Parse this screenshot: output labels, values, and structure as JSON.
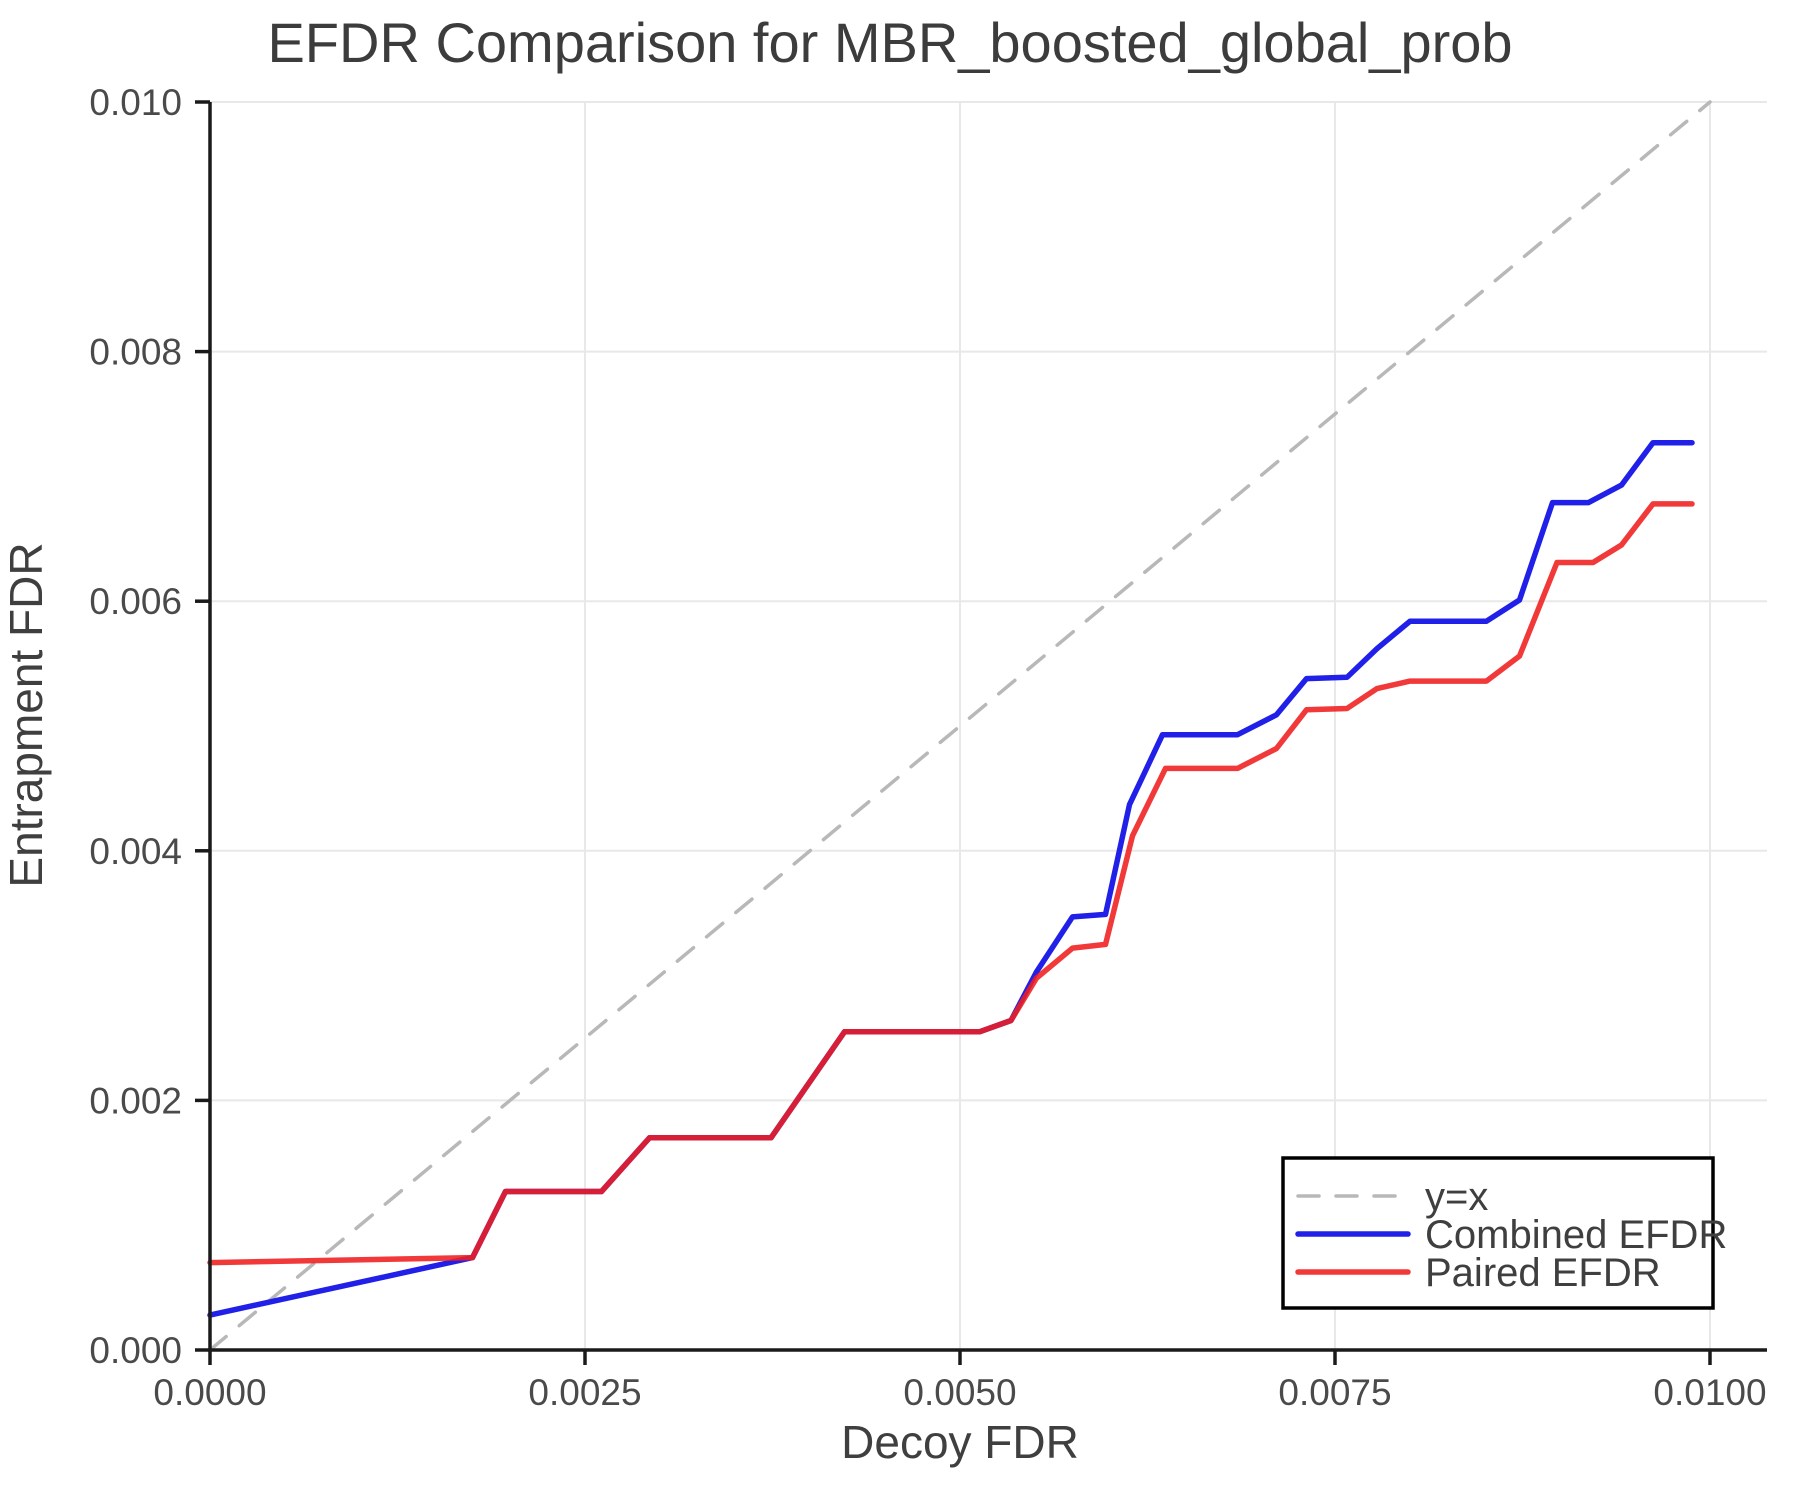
{
  "chart_data": {
    "type": "line",
    "title": "EFDR Comparison for MBR_boosted_global_prob",
    "xlabel": "Decoy FDR",
    "ylabel": "Entrapment FDR",
    "xlim": [
      0.0,
      0.01
    ],
    "ylim": [
      0.0,
      0.01
    ],
    "grid": true,
    "legend_position": "lower right",
    "background": "#ffffff",
    "grid_color": "#e8e8e8",
    "spine_color": "#1a1a1a",
    "text_color": "#3f3f3f",
    "xticks": {
      "values": [
        0.0,
        0.0025,
        0.005,
        0.0075,
        0.01
      ],
      "labels": [
        "0.0000",
        "0.0025",
        "0.0050",
        "0.0075",
        "0.0100"
      ]
    },
    "yticks": {
      "values": [
        0.0,
        0.002,
        0.004,
        0.006,
        0.008,
        0.01
      ],
      "labels": [
        "0.000",
        "0.002",
        "0.004",
        "0.006",
        "0.008",
        "0.010"
      ]
    },
    "series": [
      {
        "name": "y=x",
        "color": "#b8b8b8",
        "style": "dashed",
        "width": 3.5,
        "opacity": 1,
        "points": [
          [
            0.0,
            0.0
          ],
          [
            0.01,
            0.01
          ]
        ]
      },
      {
        "name": "Combined EFDR",
        "color": "#2020e8",
        "style": "solid",
        "width": 5.5,
        "opacity": 1,
        "points": [
          [
            0.0,
            0.00028
          ],
          [
            0.00175,
            0.00074
          ],
          [
            0.00197,
            0.00127
          ],
          [
            0.00261,
            0.00127
          ],
          [
            0.00293,
            0.0017
          ],
          [
            0.00374,
            0.0017
          ],
          [
            0.00423,
            0.00255
          ],
          [
            0.00513,
            0.00255
          ],
          [
            0.00534,
            0.00264
          ],
          [
            0.00551,
            0.00303
          ],
          [
            0.00575,
            0.00347
          ],
          [
            0.00597,
            0.00349
          ],
          [
            0.00613,
            0.00437
          ],
          [
            0.00635,
            0.00493
          ],
          [
            0.00685,
            0.00493
          ],
          [
            0.00711,
            0.00509
          ],
          [
            0.00731,
            0.00538
          ],
          [
            0.00758,
            0.00539
          ],
          [
            0.00778,
            0.00562
          ],
          [
            0.008,
            0.00584
          ],
          [
            0.00851,
            0.00584
          ],
          [
            0.00873,
            0.00601
          ],
          [
            0.00895,
            0.00679
          ],
          [
            0.00919,
            0.00679
          ],
          [
            0.00941,
            0.00693
          ],
          [
            0.00962,
            0.00727
          ],
          [
            0.00988,
            0.00727
          ]
        ]
      },
      {
        "name": "Paired EFDR",
        "color": "#f01e1e",
        "style": "solid",
        "width": 5.5,
        "opacity": 0.88,
        "points": [
          [
            0.0,
            0.0007
          ],
          [
            0.00175,
            0.00074
          ],
          [
            0.00197,
            0.00127
          ],
          [
            0.00261,
            0.00127
          ],
          [
            0.00293,
            0.0017
          ],
          [
            0.00374,
            0.0017
          ],
          [
            0.00423,
            0.00255
          ],
          [
            0.00513,
            0.00255
          ],
          [
            0.00534,
            0.00264
          ],
          [
            0.00551,
            0.00298
          ],
          [
            0.00575,
            0.00322
          ],
          [
            0.00597,
            0.00325
          ],
          [
            0.00615,
            0.00412
          ],
          [
            0.00637,
            0.00466
          ],
          [
            0.00685,
            0.00466
          ],
          [
            0.00711,
            0.00482
          ],
          [
            0.00731,
            0.00513
          ],
          [
            0.00758,
            0.00514
          ],
          [
            0.00778,
            0.0053
          ],
          [
            0.008,
            0.00536
          ],
          [
            0.00851,
            0.00536
          ],
          [
            0.00873,
            0.00556
          ],
          [
            0.00898,
            0.00631
          ],
          [
            0.00922,
            0.00631
          ],
          [
            0.00941,
            0.00645
          ],
          [
            0.00962,
            0.00678
          ],
          [
            0.00988,
            0.00678
          ]
        ]
      }
    ]
  }
}
